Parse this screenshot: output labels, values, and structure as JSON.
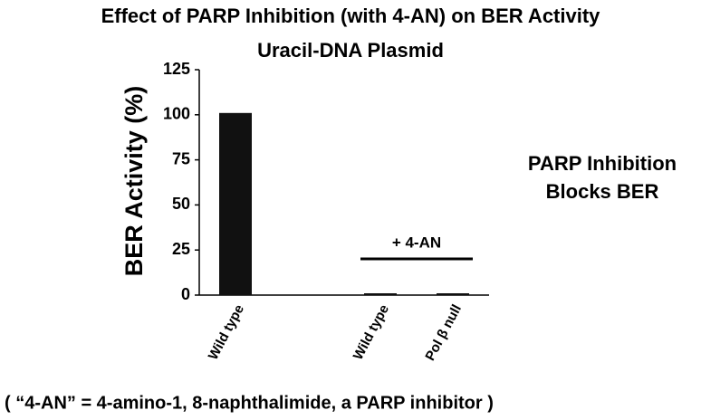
{
  "chart_data": {
    "type": "bar",
    "title": "Effect of PARP Inhibition (with 4-AN) on BER Activity",
    "subtitle": "Uracil-DNA Plasmid",
    "y_label": "BER Activity (%)",
    "categories": [
      "Wild type",
      null,
      "Wild type",
      "Pol β null"
    ],
    "values": [
      101,
      null,
      1,
      1
    ],
    "color": "#111111",
    "ylim": [
      0,
      125
    ],
    "yticks": [
      0,
      25,
      50,
      75,
      100,
      125
    ],
    "grid": false,
    "annotation": "+ 4-AN",
    "side_note": [
      "PARP Inhibition",
      "Blocks BER"
    ],
    "footnote": "( “4-AN” = 4-amino-1, 8-naphthalimide, a PARP inhibitor )"
  }
}
